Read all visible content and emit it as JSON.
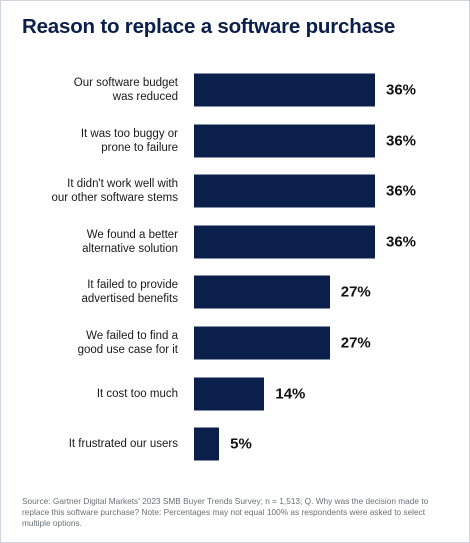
{
  "title": "Reason to replace a software purchase",
  "source": "Source: Gartner Digital Markets' 2023 SMB Buyer Trends Survey; n = 1,513; Q. Why was the decision made to replace this software purchase? Note: Percentages may not equal 100% as respondents were asked to select multiple options.",
  "colors": {
    "bar": "#0b1f4b",
    "title": "#0b1f4b"
  },
  "chart_data": {
    "type": "bar",
    "orientation": "horizontal",
    "categories": [
      "Our software budget\nwas reduced",
      "It was too buggy or\nprone to failure",
      "It didn't work well with\nour other software stems",
      "We found a better\nalternative solution",
      "It failed to provide\nadvertised benefits",
      "We failed to find a\ngood use case for it",
      "It cost too much",
      "It frustrated our users"
    ],
    "values": [
      36,
      36,
      36,
      36,
      27,
      27,
      14,
      5
    ],
    "value_labels": [
      "36%",
      "36%",
      "36%",
      "36%",
      "27%",
      "27%",
      "14%",
      "5%"
    ],
    "unit": "%",
    "xlim": [
      0,
      36
    ],
    "grid": false,
    "legend": "none"
  }
}
